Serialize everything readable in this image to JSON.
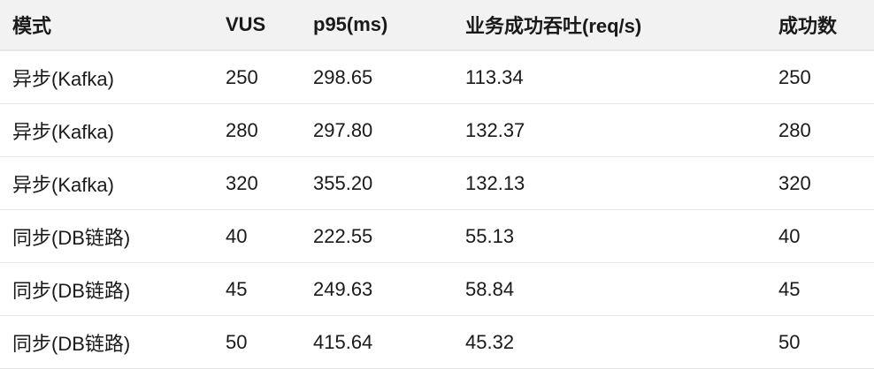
{
  "table": {
    "headers": [
      "模式",
      "VUS",
      "p95(ms)",
      "业务成功吞吐(req/s)",
      "成功数"
    ],
    "rows": [
      [
        "异步(Kafka)",
        "250",
        "298.65",
        "113.34",
        "250"
      ],
      [
        "异步(Kafka)",
        "280",
        "297.80",
        "132.37",
        "280"
      ],
      [
        "异步(Kafka)",
        "320",
        "355.20",
        "132.13",
        "320"
      ],
      [
        "同步(DB链路)",
        "40",
        "222.55",
        "55.13",
        "40"
      ],
      [
        "同步(DB链路)",
        "45",
        "249.63",
        "58.84",
        "45"
      ],
      [
        "同步(DB链路)",
        "50",
        "415.64",
        "45.32",
        "50"
      ]
    ]
  }
}
